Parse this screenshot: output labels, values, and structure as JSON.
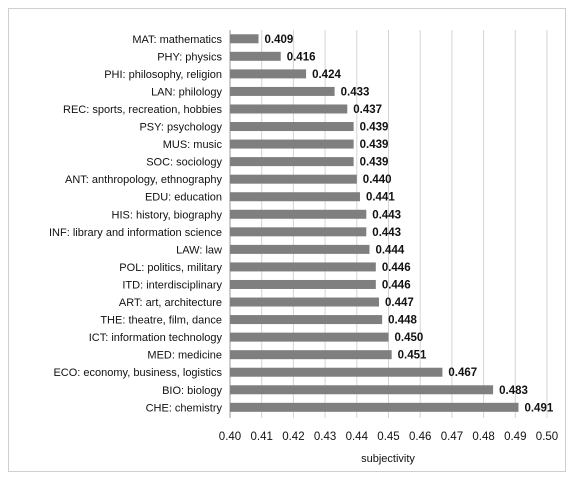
{
  "chart_data": {
    "type": "bar",
    "orientation": "horizontal",
    "title": "",
    "xlabel": "subjectivity",
    "ylabel": "",
    "xlim": [
      0.4,
      0.5
    ],
    "xticks": [
      "0.40",
      "0.41",
      "0.42",
      "0.43",
      "0.44",
      "0.45",
      "0.46",
      "0.47",
      "0.48",
      "0.49",
      "0.50"
    ],
    "grid": "vertical",
    "bar_color": "#7f7f7f",
    "categories": [
      "MAT: mathematics",
      "PHY: physics",
      "PHI: philosophy, religion",
      "LAN: philology",
      "REC: sports, recreation, hobbies",
      "PSY: psychology",
      "MUS: music",
      "SOC: sociology",
      "ANT: anthropology, ethnography",
      "EDU: education",
      "HIS: history, biography",
      "INF: library and information science",
      "LAW: law",
      "POL: politics, military",
      "ITD: interdisciplinary",
      "ART: art, architecture",
      "THE: theatre, film, dance",
      "ICT: information technology",
      "MED: medicine",
      "ECO: economy, business, logistics",
      "BIO: biology",
      "CHE: chemistry"
    ],
    "values": [
      0.409,
      0.416,
      0.424,
      0.433,
      0.437,
      0.439,
      0.439,
      0.439,
      0.44,
      0.441,
      0.443,
      0.443,
      0.444,
      0.446,
      0.446,
      0.447,
      0.448,
      0.45,
      0.451,
      0.467,
      0.483,
      0.491
    ],
    "value_labels": [
      "0.409",
      "0.416",
      "0.424",
      "0.433",
      "0.437",
      "0.439",
      "0.439",
      "0.439",
      "0.440",
      "0.441",
      "0.443",
      "0.443",
      "0.444",
      "0.446",
      "0.446",
      "0.447",
      "0.448",
      "0.450",
      "0.451",
      "0.467",
      "0.483",
      "0.491"
    ]
  }
}
